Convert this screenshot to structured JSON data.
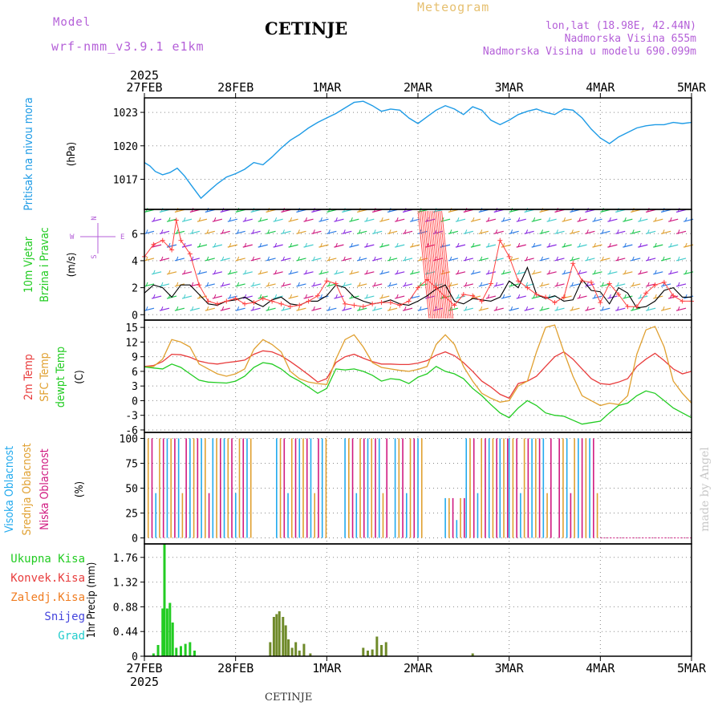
{
  "header": {
    "model_label": "Model",
    "model_name": "wrf-nmm_v3.9.1 e1km",
    "station": "CETINJE",
    "product": "Meteogram",
    "location": "lon,lat (18.98E, 42.44N)",
    "altitude": "Nadmorska Visina 655m",
    "model_altitude": "Nadmorska Visina u modelu 690.099m"
  },
  "footer": {
    "station": "CETINJE",
    "credit": "made by Angel"
  },
  "colors": {
    "pressure": "#1e9be6",
    "wind_speed": "#000000",
    "wind_gust": "#ff4040",
    "temp_2m": "#e83c3c",
    "temp_sfc": "#e0a030",
    "dewpoint": "#22cc22",
    "cloud_high": "#22aaee",
    "cloud_mid": "#e0a030",
    "cloud_low": "#d01a80",
    "precip_total": "#22cc22",
    "precip_conv": "#e83c3c",
    "precip_frozen": "#f07c20",
    "snow": "#4444dd",
    "grad": "#22cccc",
    "accent_purple": "#b45fd8"
  },
  "chart_data": [
    {
      "type": "line",
      "panel": "pressure",
      "x_ticks": [
        "27FEB",
        "28FEB",
        "1MAR",
        "2MAR",
        "3MAR",
        "4MAR",
        "5MAR"
      ],
      "year_label": "2025",
      "ylabel": [
        "Pritisak na nivou mora",
        "(hPa)"
      ],
      "ylim": [
        1014.3,
        1024.3
      ],
      "y_ticks": [
        "1017",
        "1020",
        "1023"
      ],
      "series": [
        {
          "x": [
            0,
            0.06,
            0.12,
            0.2,
            0.28,
            0.36,
            0.44,
            0.52,
            0.62,
            0.7,
            0.8,
            0.9,
            1.0,
            1.1,
            1.2,
            1.3,
            1.4,
            1.5,
            1.6,
            1.7,
            1.8,
            1.9,
            2.0,
            2.1,
            2.2,
            2.3,
            2.4,
            2.5,
            2.6,
            2.7,
            2.8,
            2.9,
            3.0,
            3.1,
            3.2,
            3.3,
            3.4,
            3.5,
            3.6,
            3.7,
            3.8,
            3.9,
            4.0,
            4.1,
            4.2,
            4.3,
            4.4,
            4.5,
            4.6,
            4.7,
            4.8,
            4.9,
            5.0,
            5.1,
            5.2,
            5.3,
            5.4,
            5.5,
            5.6,
            5.7,
            5.8,
            5.9,
            6.0
          ],
          "values": [
            1018.5,
            1018.2,
            1017.7,
            1017.4,
            1017.6,
            1018.0,
            1017.3,
            1016.4,
            1015.3,
            1015.9,
            1016.6,
            1017.2,
            1017.5,
            1017.9,
            1018.5,
            1018.3,
            1019.0,
            1019.8,
            1020.5,
            1021.0,
            1021.6,
            1022.1,
            1022.5,
            1022.9,
            1023.4,
            1023.9,
            1024.0,
            1023.6,
            1023.1,
            1023.3,
            1023.2,
            1022.5,
            1022.0,
            1022.6,
            1023.2,
            1023.6,
            1023.3,
            1022.8,
            1023.5,
            1023.2,
            1022.3,
            1021.9,
            1022.3,
            1022.8,
            1023.1,
            1023.3,
            1023.0,
            1022.8,
            1023.3,
            1023.2,
            1022.5,
            1021.5,
            1020.7,
            1020.2,
            1020.8,
            1021.2,
            1021.6,
            1021.8,
            1021.9,
            1021.9,
            1022.1,
            1022.0,
            1022.1
          ]
        }
      ]
    },
    {
      "type": "line",
      "panel": "wind",
      "ylabel": [
        "10m Vjetar",
        "Brzina i Pravac",
        "(m/s)"
      ],
      "compass_labels": [
        "N",
        "W",
        "E",
        "S"
      ],
      "ylim": [
        -0.4,
        7.8
      ],
      "y_ticks": [
        "0",
        "2",
        "4",
        "6"
      ],
      "series": [
        {
          "name": "speed",
          "x": [
            0,
            0.1,
            0.2,
            0.3,
            0.4,
            0.5,
            0.6,
            0.7,
            0.8,
            0.9,
            1.0,
            1.1,
            1.2,
            1.3,
            1.4,
            1.5,
            1.6,
            1.7,
            1.8,
            1.9,
            2.0,
            2.1,
            2.2,
            2.3,
            2.4,
            2.5,
            2.6,
            2.7,
            2.8,
            2.9,
            3.0,
            3.1,
            3.2,
            3.3,
            3.4,
            3.5,
            3.6,
            3.7,
            3.8,
            3.9,
            4.0,
            4.1,
            4.2,
            4.3,
            4.4,
            4.5,
            4.6,
            4.7,
            4.8,
            4.9,
            5.0,
            5.1,
            5.2,
            5.3,
            5.4,
            5.5,
            5.6,
            5.7,
            5.8,
            5.9,
            6.0
          ],
          "values": [
            1.6,
            2.2,
            2.0,
            1.3,
            2.2,
            2.2,
            1.5,
            0.8,
            0.7,
            1.0,
            1.1,
            1.3,
            0.9,
            0.6,
            1.1,
            1.3,
            0.8,
            0.7,
            1.0,
            1.0,
            1.4,
            2.2,
            2.0,
            1.3,
            1.0,
            0.8,
            0.9,
            1.1,
            0.8,
            0.7,
            1.0,
            1.4,
            1.9,
            2.2,
            1.0,
            0.8,
            1.2,
            1.1,
            1.0,
            1.3,
            2.5,
            2.0,
            3.5,
            1.5,
            1.2,
            1.4,
            1.0,
            1.1,
            2.6,
            1.8,
            1.7,
            0.8,
            2.0,
            1.6,
            0.5,
            0.6,
            1.0,
            1.8,
            2.0,
            1.3,
            1.3
          ]
        },
        {
          "name": "gust",
          "x": [
            0,
            0.1,
            0.2,
            0.3,
            0.35,
            0.4,
            0.5,
            0.6,
            0.7,
            0.8,
            0.9,
            1.0,
            1.1,
            1.2,
            1.3,
            1.4,
            1.5,
            1.6,
            1.7,
            1.8,
            1.9,
            2.0,
            2.1,
            2.2,
            2.3,
            2.4,
            2.5,
            2.6,
            2.7,
            2.8,
            2.9,
            3.0,
            3.1,
            3.2,
            3.3,
            3.4,
            3.5,
            3.6,
            3.7,
            3.8,
            3.9,
            4.0,
            4.1,
            4.2,
            4.3,
            4.4,
            4.5,
            4.6,
            4.7,
            4.8,
            4.9,
            5.0,
            5.1,
            5.2,
            5.3,
            5.4,
            5.5,
            5.6,
            5.7,
            5.8,
            5.9,
            6.0
          ],
          "values": [
            4.3,
            5.2,
            5.5,
            4.8,
            7.0,
            5.5,
            4.5,
            2.2,
            1.0,
            0.8,
            1.0,
            1.2,
            0.8,
            0.9,
            1.2,
            1.0,
            0.8,
            0.6,
            0.7,
            1.0,
            1.4,
            2.5,
            2.3,
            0.8,
            0.7,
            0.6,
            0.8,
            0.9,
            0.9,
            0.7,
            1.0,
            2.0,
            2.6,
            2.0,
            1.3,
            0.7,
            1.5,
            1.4,
            1.0,
            2.3,
            5.5,
            4.3,
            2.5,
            2.0,
            1.5,
            1.3,
            0.9,
            1.3,
            3.8,
            2.5,
            2.4,
            0.9,
            2.3,
            1.5,
            0.6,
            0.6,
            1.6,
            2.2,
            2.4,
            1.4,
            1.0,
            1.0
          ]
        }
      ]
    },
    {
      "type": "line",
      "panel": "temperature",
      "ylabel": [
        "2m Temp",
        "SFC Temp",
        "dewpt Temp",
        "(C)"
      ],
      "ylim": [
        -6.5,
        16.5
      ],
      "y_ticks": [
        "-6",
        "-3",
        "0",
        "3",
        "6",
        "9",
        "12",
        "15"
      ],
      "x": [
        0,
        0.1,
        0.2,
        0.3,
        0.4,
        0.5,
        0.6,
        0.7,
        0.8,
        0.9,
        1.0,
        1.1,
        1.2,
        1.3,
        1.4,
        1.5,
        1.6,
        1.7,
        1.8,
        1.9,
        2.0,
        2.1,
        2.2,
        2.3,
        2.4,
        2.5,
        2.6,
        2.7,
        2.8,
        2.9,
        3.0,
        3.1,
        3.2,
        3.3,
        3.4,
        3.5,
        3.6,
        3.7,
        3.8,
        3.9,
        4.0,
        4.1,
        4.2,
        4.3,
        4.4,
        4.5,
        4.6,
        4.7,
        4.8,
        4.9,
        5.0,
        5.1,
        5.2,
        5.3,
        5.4,
        5.5,
        5.6,
        5.7,
        5.8,
        5.9,
        6.0
      ],
      "series": [
        {
          "name": "2m Temp",
          "values": [
            7.0,
            7.2,
            8.0,
            9.5,
            9.4,
            8.9,
            8.1,
            7.7,
            7.5,
            7.8,
            8.0,
            8.3,
            9.5,
            10.2,
            10.0,
            9.2,
            8.0,
            6.7,
            5.3,
            3.8,
            4.5,
            7.8,
            9.0,
            9.5,
            8.7,
            8.0,
            7.5,
            7.5,
            7.4,
            7.4,
            7.7,
            8.2,
            9.3,
            10.0,
            9.2,
            7.8,
            6.0,
            4.0,
            2.8,
            1.3,
            0.5,
            3.5,
            4.0,
            5.0,
            7.0,
            9.0,
            10.0,
            8.5,
            6.5,
            4.5,
            3.5,
            3.3,
            3.8,
            4.5,
            7.0,
            8.5,
            9.7,
            8.2,
            6.5,
            5.5,
            6.0
          ]
        },
        {
          "name": "SFC Temp",
          "values": [
            6.9,
            7.0,
            8.5,
            12.5,
            12.0,
            11.0,
            7.5,
            6.5,
            5.5,
            5.0,
            5.5,
            6.5,
            10.5,
            12.5,
            11.5,
            10.0,
            6.0,
            4.5,
            3.8,
            3.5,
            3.3,
            8.5,
            12.5,
            13.5,
            11.0,
            7.8,
            6.8,
            6.5,
            6.2,
            6.0,
            6.4,
            7.0,
            11.5,
            13.5,
            11.5,
            7.0,
            4.0,
            1.5,
            0.5,
            -0.3,
            0.0,
            3.0,
            4.0,
            10.0,
            15.0,
            15.5,
            10.0,
            5.0,
            1.0,
            0.0,
            -1.0,
            -0.5,
            -0.8,
            1.0,
            9.5,
            14.5,
            15.2,
            11.0,
            4.0,
            1.5,
            -0.5
          ]
        },
        {
          "name": "dewpt Temp",
          "values": [
            6.9,
            6.7,
            6.5,
            7.5,
            6.8,
            5.5,
            4.2,
            3.8,
            3.7,
            3.6,
            4.0,
            5.0,
            6.8,
            7.8,
            7.5,
            6.5,
            5.0,
            4.0,
            2.8,
            1.5,
            2.5,
            6.5,
            6.3,
            6.5,
            6.0,
            5.2,
            4.0,
            4.5,
            4.3,
            3.5,
            4.8,
            5.5,
            7.0,
            6.0,
            5.5,
            4.5,
            2.5,
            1.0,
            -0.8,
            -2.5,
            -3.5,
            -1.5,
            0.0,
            -1.0,
            -2.5,
            -3.0,
            -3.2,
            -4.0,
            -4.8,
            -4.5,
            -4.2,
            -2.5,
            -1.0,
            -0.5,
            1.0,
            2.0,
            1.5,
            0.0,
            -1.5,
            -2.5,
            -3.5
          ]
        }
      ]
    },
    {
      "type": "bar",
      "panel": "clouds",
      "ylabel": [
        "Visoka Oblacnost",
        "Srednja Oblacnost",
        "Niska Oblacnost",
        "(%)"
      ],
      "ylim": [
        -6,
        106
      ],
      "y_ticks": [
        "0",
        "25",
        "50",
        "75",
        "100"
      ],
      "segments": [
        {
          "from": 0.0,
          "to": 1.2,
          "coverage": 100,
          "layers": [
            "high",
            "mid",
            "low"
          ]
        },
        {
          "from": 1.45,
          "to": 2.03,
          "coverage": 100,
          "layers": [
            "high",
            "mid",
            "low"
          ]
        },
        {
          "from": 2.2,
          "to": 2.7,
          "coverage": 100,
          "layers": [
            "high",
            "mid",
            "low"
          ]
        },
        {
          "from": 2.75,
          "to": 3.08,
          "coverage": 100,
          "layers": [
            "high",
            "mid",
            "low"
          ]
        },
        {
          "from": 3.3,
          "to": 3.53,
          "coverage": 40,
          "layers": [
            "high",
            "mid",
            "low"
          ]
        },
        {
          "from": 3.53,
          "to": 3.9,
          "coverage": 100,
          "layers": [
            "high",
            "mid",
            "low"
          ]
        },
        {
          "from": 3.9,
          "to": 4.0,
          "coverage": 100,
          "layers": [
            "high",
            "mid",
            "low"
          ]
        },
        {
          "from": 4.0,
          "to": 4.5,
          "coverage": 100,
          "layers": [
            "high",
            "mid",
            "low"
          ]
        },
        {
          "from": 4.55,
          "to": 5.0,
          "coverage": 100,
          "layers": [
            "low",
            "mid",
            "high"
          ]
        },
        {
          "from": 5.0,
          "to": 5.05,
          "coverage": 0,
          "layers": []
        }
      ]
    },
    {
      "type": "bar",
      "panel": "precipitation",
      "ylabel": "1hr Precip (mm)",
      "legend": [
        "Ukupna Kisa",
        "Konvek.Kisa",
        "Zaledj.Kisa",
        "Snijeg",
        "Grad"
      ],
      "ylim": [
        0,
        2.0
      ],
      "y_ticks": [
        "0",
        "0.44",
        "0.88",
        "1.32",
        "1.76"
      ],
      "x_ticks": [
        "27FEB",
        "28FEB",
        "1MAR",
        "2MAR",
        "3MAR",
        "4MAR",
        "5MAR"
      ],
      "year_label": "2025",
      "series": [
        {
          "name": "Ukupna Kisa",
          "x": [
            0.1,
            0.15,
            0.2,
            0.22,
            0.25,
            0.28,
            0.31,
            0.35,
            0.4,
            0.45,
            0.5,
            0.55
          ],
          "values": [
            0.05,
            0.2,
            0.85,
            2.0,
            0.85,
            0.95,
            0.6,
            0.15,
            0.18,
            0.22,
            0.25,
            0.1
          ]
        },
        {
          "name": "Konvek.Kisa",
          "x": [
            1.38,
            1.42,
            1.45,
            1.48,
            1.52,
            1.55,
            1.58,
            1.62,
            1.66,
            1.7,
            1.75,
            1.82,
            2.4,
            2.45,
            2.5,
            2.55,
            2.6,
            2.65,
            3.6
          ],
          "values": [
            0.25,
            0.7,
            0.75,
            0.8,
            0.7,
            0.55,
            0.3,
            0.15,
            0.25,
            0.1,
            0.22,
            0.05,
            0.15,
            0.1,
            0.12,
            0.35,
            0.2,
            0.25,
            0.05
          ]
        }
      ]
    }
  ]
}
